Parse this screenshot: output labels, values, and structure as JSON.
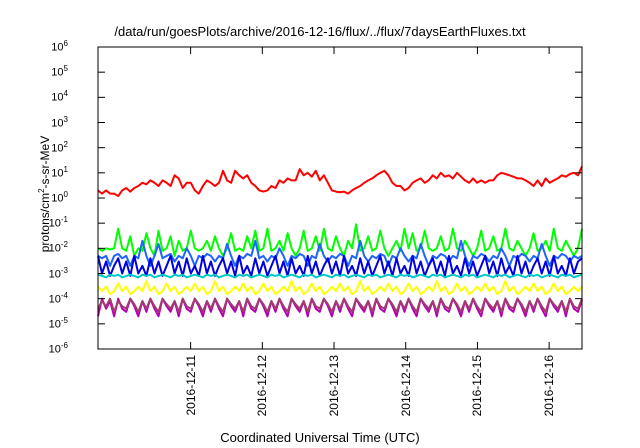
{
  "chart_data": {
    "type": "line",
    "title": "/data/run/goesPlots/archive/2016-12-16/flux/../flux/7daysEarthFluxes.txt",
    "xlabel": "Coordinated Universal Time (UTC)",
    "ylabel": {
      "base": "protons/cm",
      "exp": "2",
      "rest": "-s-sr-MeV"
    },
    "yscale": "log",
    "ylim": [
      1e-06,
      1000000.0
    ],
    "xlim": [
      "2016-12-10T05:00",
      "2016-12-16T23:00"
    ],
    "x_ticks": [
      "2016-12-11",
      "2016-12-12",
      "2016-12-13",
      "2016-12-14",
      "2016-12-15",
      "2016-12-16"
    ],
    "y_ticks": [
      {
        "base": "10",
        "exp": "-6"
      },
      {
        "base": "10",
        "exp": "-5"
      },
      {
        "base": "10",
        "exp": "-4"
      },
      {
        "base": "10",
        "exp": "-3"
      },
      {
        "base": "10",
        "exp": "-2"
      },
      {
        "base": "10",
        "exp": "-1"
      },
      {
        "base": "10",
        "exp": "0"
      },
      {
        "base": "10",
        "exp": "1"
      },
      {
        "base": "10",
        "exp": "2"
      },
      {
        "base": "10",
        "exp": "3"
      },
      {
        "base": "10",
        "exp": "4"
      },
      {
        "base": "10",
        "exp": "5"
      },
      {
        "base": "10",
        "exp": "6"
      }
    ],
    "grid": false,
    "legend": "none",
    "series": [
      {
        "color": "#ff0000",
        "values": [
          2,
          1.5,
          2,
          1.5,
          1.5,
          1.2,
          2,
          2.5,
          1.8,
          2.5,
          3,
          4,
          3.5,
          5,
          4,
          3,
          5,
          4,
          3,
          8,
          6,
          2.5,
          4,
          4,
          2,
          1.5,
          3,
          5,
          4,
          3,
          4,
          12,
          5,
          4,
          12,
          8,
          6,
          8,
          4,
          3,
          2,
          1.8,
          2,
          3,
          2.5,
          5,
          4,
          6,
          5,
          5,
          14,
          8,
          10,
          7,
          12,
          5,
          8,
          4,
          2,
          1.8,
          1.7,
          1.8,
          1.5,
          2,
          2.5,
          3,
          4,
          5,
          6,
          8,
          10,
          12,
          8,
          4,
          3,
          3,
          2,
          2.5,
          4,
          5,
          6,
          4,
          5,
          8,
          6,
          10,
          7,
          8,
          6,
          10,
          7,
          5,
          4,
          6,
          4,
          5,
          4,
          5,
          5,
          8,
          10,
          9,
          8,
          7,
          6,
          6,
          5,
          4,
          3,
          5,
          3,
          6,
          4,
          5,
          6,
          8,
          7,
          9,
          10,
          8,
          18
        ]
      },
      {
        "color": "#00ff00",
        "values": [
          0.01,
          0.008,
          0.01,
          0.009,
          0.01,
          0.06,
          0.01,
          0.008,
          0.03,
          0.005,
          0.01,
          0.008,
          0.04,
          0.01,
          0.005,
          0.05,
          0.008,
          0.01,
          0.03,
          0.005,
          0.02,
          0.008,
          0.01,
          0.05,
          0.01,
          0.008,
          0.01,
          0.02,
          0.008,
          0.03,
          0.01,
          0.005,
          0.01,
          0.04,
          0.008,
          0.01,
          0.008,
          0.03,
          0.01,
          0.05,
          0.008,
          0.01,
          0.06,
          0.008,
          0.01,
          0.02,
          0.008,
          0.04,
          0.01,
          0.005,
          0.01,
          0.05,
          0.008,
          0.01,
          0.03,
          0.008,
          0.06,
          0.01,
          0.008,
          0.03,
          0.01,
          0.005,
          0.02,
          0.01,
          0.09,
          0.008,
          0.01,
          0.03,
          0.008,
          0.01,
          0.05,
          0.01,
          0.005,
          0.01,
          0.02,
          0.008,
          0.06,
          0.01,
          0.04,
          0.008,
          0.01,
          0.05,
          0.01,
          0.008,
          0.01,
          0.03,
          0.008,
          0.01,
          0.06,
          0.01,
          0.008,
          0.02,
          0.01,
          0.005,
          0.01,
          0.05,
          0.008,
          0.01,
          0.03,
          0.008,
          0.01,
          0.06,
          0.01,
          0.008,
          0.02,
          0.01,
          0.005,
          0.01,
          0.04,
          0.008,
          0.01,
          0.02,
          0.008,
          0.06,
          0.01,
          0.008,
          0.02,
          0.01,
          0.005,
          0.01,
          0.06
        ]
      },
      {
        "color": "#1e64ff",
        "values": [
          0.005,
          0.004,
          0.005,
          0.002,
          0.005,
          0.006,
          0.004,
          0.005,
          0.002,
          0.005,
          0.004,
          0.02,
          0.005,
          0.002,
          0.005,
          0.015,
          0.004,
          0.005,
          0.006,
          0.003,
          0.005,
          0.004,
          0.01,
          0.005,
          0.002,
          0.005,
          0.004,
          0.006,
          0.005,
          0.003,
          0.005,
          0.004,
          0.015,
          0.005,
          0.002,
          0.005,
          0.004,
          0.006,
          0.005,
          0.02,
          0.004,
          0.005,
          0.003,
          0.005,
          0.004,
          0.01,
          0.005,
          0.002,
          0.005,
          0.004,
          0.006,
          0.005,
          0.002,
          0.005,
          0.004,
          0.015,
          0.005,
          0.003,
          0.005,
          0.004,
          0.006,
          0.005,
          0.002,
          0.005,
          0.004,
          0.02,
          0.005,
          0.003,
          0.005,
          0.004,
          0.006,
          0.005,
          0.002,
          0.005,
          0.004,
          0.01,
          0.005,
          0.003,
          0.005,
          0.004,
          0.015,
          0.005,
          0.002,
          0.005,
          0.004,
          0.006,
          0.005,
          0.003,
          0.005,
          0.004,
          0.02,
          0.005,
          0.002,
          0.005,
          0.004,
          0.006,
          0.005,
          0.003,
          0.005,
          0.004,
          0.01,
          0.005,
          0.002,
          0.005,
          0.004,
          0.006,
          0.005,
          0.003,
          0.005,
          0.004,
          0.015,
          0.005,
          0.002,
          0.005,
          0.004,
          0.006,
          0.005,
          0.003,
          0.005,
          0.004,
          0.005
        ]
      },
      {
        "color": "#0000e0",
        "values": [
          0.005,
          0.001,
          0.003,
          0.0008,
          0.002,
          0.004,
          0.001,
          0.003,
          0.0008,
          0.005,
          0.001,
          0.002,
          0.0008,
          0.004,
          0.001,
          0.003,
          0.0008,
          0.002,
          0.005,
          0.001,
          0.003,
          0.0008,
          0.004,
          0.001,
          0.002,
          0.0008,
          0.005,
          0.001,
          0.003,
          0.0008,
          0.002,
          0.004,
          0.001,
          0.003,
          0.0008,
          0.005,
          0.001,
          0.002,
          0.0008,
          0.004,
          0.001,
          0.003,
          0.0008,
          0.002,
          0.005,
          0.001,
          0.003,
          0.0008,
          0.004,
          0.001,
          0.002,
          0.0008,
          0.005,
          0.001,
          0.003,
          0.0008,
          0.002,
          0.004,
          0.001,
          0.003,
          0.0008,
          0.005,
          0.001,
          0.002,
          0.0008,
          0.004,
          0.001,
          0.003,
          0.0008,
          0.002,
          0.005,
          0.001,
          0.003,
          0.0008,
          0.004,
          0.001,
          0.002,
          0.0008,
          0.005,
          0.001,
          0.003,
          0.0008,
          0.002,
          0.004,
          0.001,
          0.003,
          0.0008,
          0.005,
          0.001,
          0.002,
          0.0008,
          0.004,
          0.001,
          0.003,
          0.0008,
          0.002,
          0.005,
          0.001,
          0.003,
          0.0008,
          0.004,
          0.001,
          0.002,
          0.0008,
          0.005,
          0.001,
          0.003,
          0.0008,
          0.002,
          0.004,
          0.001,
          0.003,
          0.0008,
          0.005,
          0.001,
          0.002,
          0.0008,
          0.004,
          0.001,
          0.003,
          0.004
        ]
      },
      {
        "color": "#00c8c8",
        "values": [
          0.0009,
          0.0008,
          0.0007,
          0.0009,
          0.0008,
          0.0009,
          0.0007,
          0.0008,
          0.0009,
          0.0008,
          0.0007,
          0.0009,
          0.0008,
          0.0009,
          0.0007,
          0.0008,
          0.0009,
          0.0008,
          0.0007,
          0.0009,
          0.0008,
          0.0009,
          0.0007,
          0.0008,
          0.0009,
          0.0008,
          0.0007,
          0.0009,
          0.0008,
          0.0009,
          0.0007,
          0.0008,
          0.0009,
          0.0008,
          0.0007,
          0.0009,
          0.0008,
          0.0009,
          0.0007,
          0.0008,
          0.0009,
          0.0008,
          0.0007,
          0.0009,
          0.0008,
          0.0009,
          0.0007,
          0.0008,
          0.0009,
          0.0008,
          0.0007,
          0.0009,
          0.0008,
          0.0009,
          0.0007,
          0.0008,
          0.0009,
          0.0008,
          0.0007,
          0.0009,
          0.0008,
          0.0009,
          0.0007,
          0.0008,
          0.0009,
          0.0008,
          0.0007,
          0.0009,
          0.0008,
          0.0009,
          0.0007,
          0.0008,
          0.0009,
          0.0008,
          0.0007,
          0.0009,
          0.0008,
          0.0009,
          0.0007,
          0.0008,
          0.0009,
          0.0008,
          0.0007,
          0.0009,
          0.0008,
          0.0009,
          0.0007,
          0.0008,
          0.0009,
          0.0008,
          0.0007,
          0.0009,
          0.0008,
          0.0009,
          0.0007,
          0.0008,
          0.0009,
          0.0008,
          0.0007,
          0.0009,
          0.0008,
          0.0009,
          0.0007,
          0.0008,
          0.0009,
          0.0008,
          0.0007,
          0.0009,
          0.0008,
          0.0009,
          0.0007,
          0.0008,
          0.0009,
          0.0008,
          0.0007,
          0.0009,
          0.0008,
          0.0009,
          0.0007,
          0.0008,
          0.0009
        ]
      },
      {
        "color": "#ffff00",
        "values": [
          0.0003,
          0.0002,
          0.0003,
          0.00015,
          0.0002,
          0.0004,
          0.0002,
          0.0003,
          0.00015,
          0.0002,
          0.0003,
          0.0002,
          0.0005,
          0.0002,
          0.0003,
          0.00015,
          0.0002,
          0.0004,
          0.0002,
          0.0003,
          0.00015,
          0.0002,
          0.0003,
          0.0002,
          0.0004,
          0.0002,
          0.0003,
          0.00015,
          0.0002,
          0.0005,
          0.0002,
          0.0003,
          0.00015,
          0.0002,
          0.0003,
          0.0002,
          0.0004,
          0.0002,
          0.0003,
          0.00015,
          0.0002,
          0.0004,
          0.0002,
          0.0003,
          0.00015,
          0.0002,
          0.0003,
          0.0002,
          0.0005,
          0.0002,
          0.0003,
          0.00015,
          0.0002,
          0.0004,
          0.0002,
          0.0003,
          0.00015,
          0.0002,
          0.0003,
          0.0002,
          0.0004,
          0.0002,
          0.0003,
          0.00015,
          0.0002,
          0.0005,
          0.0002,
          0.0003,
          0.00015,
          0.0002,
          0.0003,
          0.0002,
          0.0004,
          0.0002,
          0.0003,
          0.00015,
          0.0002,
          0.0004,
          0.0002,
          0.0003,
          0.00015,
          0.0002,
          0.0003,
          0.0002,
          0.0005,
          0.0002,
          0.0003,
          0.00015,
          0.0002,
          0.0004,
          0.0002,
          0.0003,
          0.00015,
          0.0002,
          0.0003,
          0.0002,
          0.0004,
          0.0002,
          0.0003,
          0.00015,
          0.0002,
          0.0005,
          0.0002,
          0.0003,
          0.00015,
          0.0002,
          0.0003,
          0.0002,
          0.0004,
          0.0002,
          0.0003,
          0.00015,
          0.0002,
          0.0004,
          0.0002,
          0.0003,
          0.00015,
          0.0002,
          0.0003,
          0.0002,
          0.0003
        ]
      },
      {
        "color": "#b400b4",
        "values": [
          2e-05,
          0.0001,
          4e-05,
          8e-05,
          2e-05,
          0.0001,
          4e-05,
          3e-05,
          0.0001,
          5e-05,
          2e-05,
          8e-05,
          3e-05,
          0.0001,
          4e-05,
          2e-05,
          0.0001,
          5e-05,
          3e-05,
          8e-05,
          2e-05,
          0.0001,
          4e-05,
          3e-05,
          0.0001,
          5e-05,
          2e-05,
          8e-05,
          3e-05,
          0.0001,
          4e-05,
          2e-05,
          0.0001,
          5e-05,
          3e-05,
          8e-05,
          2e-05,
          0.0001,
          4e-05,
          3e-05,
          0.0001,
          5e-05,
          2e-05,
          8e-05,
          3e-05,
          0.0001,
          4e-05,
          2e-05,
          0.0001,
          5e-05,
          3e-05,
          8e-05,
          2e-05,
          0.0001,
          4e-05,
          3e-05,
          0.0001,
          5e-05,
          2e-05,
          8e-05,
          3e-05,
          0.0001,
          4e-05,
          2e-05,
          0.0001,
          5e-05,
          3e-05,
          8e-05,
          2e-05,
          0.0001,
          4e-05,
          3e-05,
          0.0001,
          5e-05,
          2e-05,
          8e-05,
          3e-05,
          0.0001,
          4e-05,
          2e-05,
          0.0001,
          5e-05,
          3e-05,
          8e-05,
          2e-05,
          0.0001,
          4e-05,
          3e-05,
          0.0001,
          5e-05,
          2e-05,
          8e-05,
          3e-05,
          0.0001,
          4e-05,
          2e-05,
          0.0001,
          5e-05,
          3e-05,
          8e-05,
          2e-05,
          0.0001,
          4e-05,
          3e-05,
          0.0001,
          5e-05,
          2e-05,
          8e-05,
          3e-05,
          0.0001,
          4e-05,
          2e-05,
          0.0001,
          5e-05,
          3e-05,
          8e-05,
          2e-05,
          0.0001,
          4e-05,
          3e-05,
          9e-05
        ]
      },
      {
        "color": "#a03c6e",
        "values": [
          4e-05,
          8e-05,
          5e-05,
          0.0001,
          3e-05,
          8e-05,
          5e-05,
          4e-05,
          0.0001,
          6e-05,
          3e-05,
          8e-05,
          4e-05,
          0.0001,
          5e-05,
          3e-05,
          0.0001,
          6e-05,
          4e-05,
          8e-05,
          3e-05,
          0.0001,
          5e-05,
          4e-05,
          0.0001,
          6e-05,
          3e-05,
          8e-05,
          4e-05,
          0.0001,
          5e-05,
          3e-05,
          0.0001,
          6e-05,
          4e-05,
          8e-05,
          3e-05,
          0.0001,
          5e-05,
          4e-05,
          0.0001,
          6e-05,
          3e-05,
          8e-05,
          4e-05,
          0.0001,
          5e-05,
          3e-05,
          0.0001,
          6e-05,
          4e-05,
          8e-05,
          3e-05,
          0.0001,
          5e-05,
          4e-05,
          0.0001,
          6e-05,
          3e-05,
          8e-05,
          4e-05,
          0.0001,
          5e-05,
          3e-05,
          0.0001,
          6e-05,
          4e-05,
          8e-05,
          3e-05,
          0.0001,
          5e-05,
          4e-05,
          0.0001,
          6e-05,
          3e-05,
          8e-05,
          4e-05,
          0.0001,
          5e-05,
          3e-05,
          0.0001,
          6e-05,
          4e-05,
          8e-05,
          3e-05,
          0.0001,
          5e-05,
          4e-05,
          0.0001,
          6e-05,
          3e-05,
          8e-05,
          4e-05,
          0.0001,
          5e-05,
          3e-05,
          0.0001,
          6e-05,
          4e-05,
          8e-05,
          3e-05,
          0.0001,
          5e-05,
          4e-05,
          0.0001,
          6e-05,
          3e-05,
          8e-05,
          4e-05,
          0.0001,
          5e-05,
          3e-05,
          0.0001,
          6e-05,
          4e-05,
          8e-05,
          3e-05,
          0.0001,
          5e-05,
          4e-05,
          0.0001
        ]
      }
    ]
  }
}
